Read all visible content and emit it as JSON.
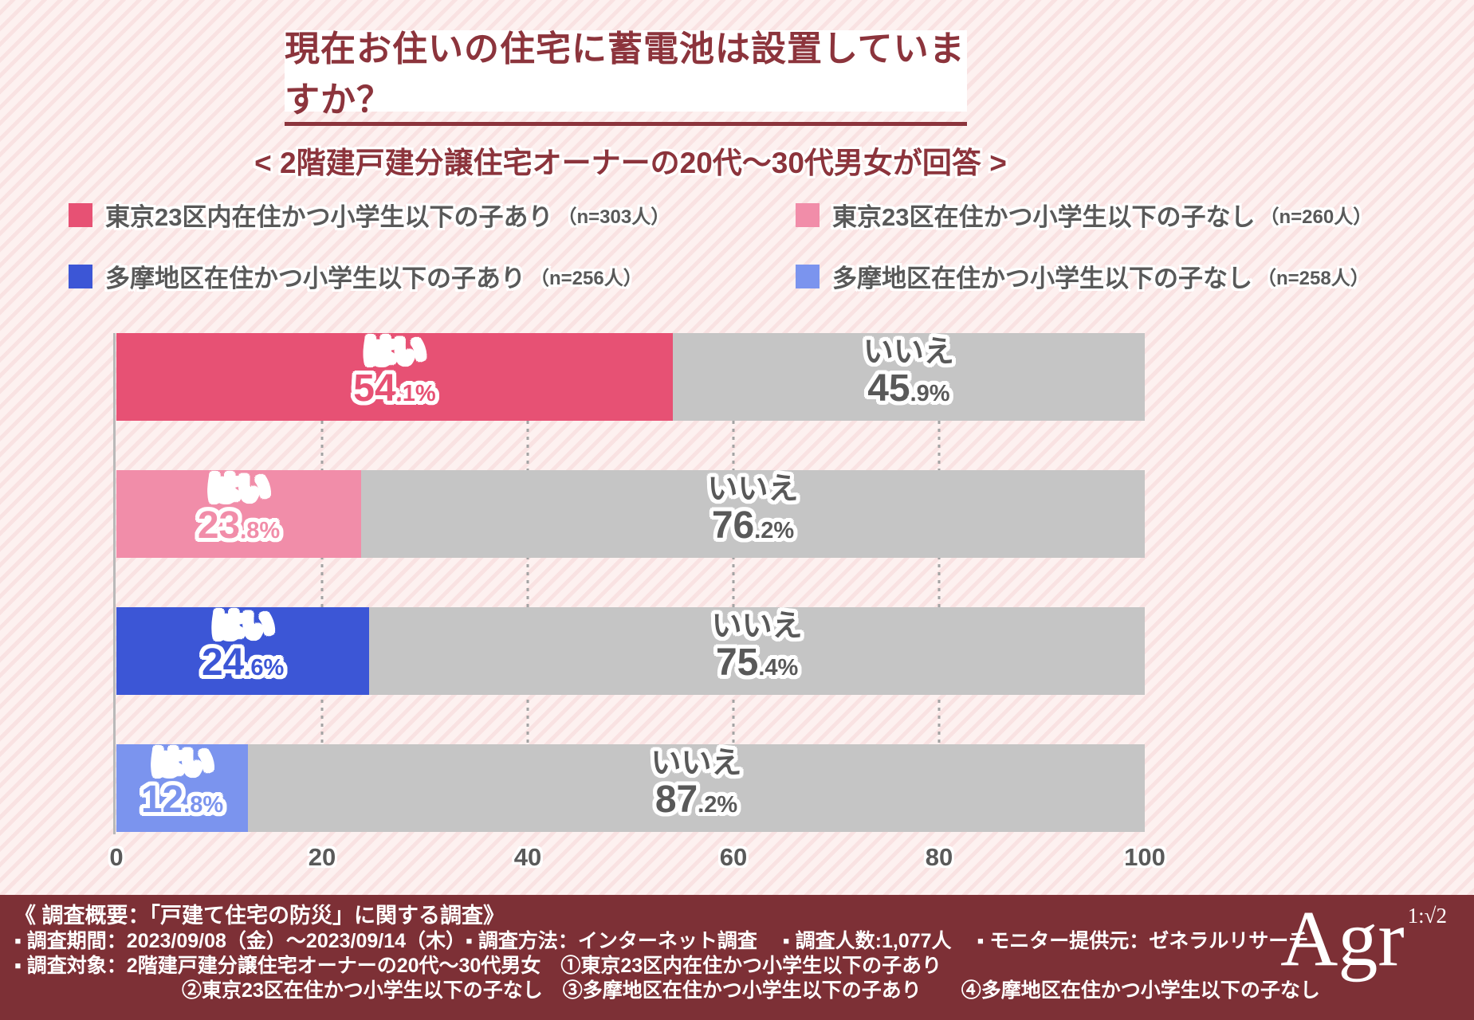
{
  "title": "現在お住いの住宅に蓄電池は設置していますか？",
  "subtitle": "< 2階建戸建分譲住宅オーナーの20代～30代男女が回答 >",
  "legend": [
    {
      "label": "東京23区内在住かつ小学生以下の子あり",
      "n": "（n=303人）",
      "color": "#e75174"
    },
    {
      "label": "東京23区在住かつ小学生以下の子なし",
      "n": "（n=260人）",
      "color": "#f18da9"
    },
    {
      "label": "多摩地区在住かつ小学生以下の子あり",
      "n": "（n=256人）",
      "color": "#3c56d6"
    },
    {
      "label": "多摩地区在住かつ小学生以下の子なし",
      "n": "（n=258人）",
      "color": "#7b94ee"
    }
  ],
  "chart_data": {
    "type": "bar",
    "orientation": "horizontal",
    "stacked": true,
    "categories": [
      "東京23区内在住かつ小学生以下の子あり（n=303人）",
      "東京23区在住かつ小学生以下の子なし（n=260人）",
      "多摩地区在住かつ小学生以下の子あり（n=256人）",
      "多摩地区在住かつ小学生以下の子なし（n=258人）"
    ],
    "series": [
      {
        "name": "はい",
        "values": [
          54.1,
          23.8,
          24.6,
          12.8
        ],
        "colors": [
          "#e75174",
          "#f18da9",
          "#3c56d6",
          "#7b94ee"
        ]
      },
      {
        "name": "いいえ",
        "values": [
          45.9,
          76.2,
          75.4,
          87.2
        ],
        "color": "#c5c5c5"
      }
    ],
    "xlim": [
      0,
      100
    ],
    "xticks": [
      0,
      20,
      40,
      60,
      80,
      100
    ],
    "gridlines": [
      20,
      40,
      60,
      80
    ],
    "no_text_color": "#595959",
    "grid": true,
    "legend_position": "top"
  },
  "footer": {
    "line1": "《 調査概要：「戸建て住宅の防災」に関する調査》",
    "line2": "▪ 調査期間：2023/09/08（金）～2023/09/14（木）▪ 調査方法：インターネット調査　 ▪ 調査人数:1,077人 　▪ モニター提供元：ゼネラルリサーチ",
    "line3": "▪ 調査対象：2階建戸建分譲住宅オーナーの20代～30代男女　①東京23区内在住かつ小学生以下の子あり",
    "line4": "②東京23区在住かつ小学生以下の子なし　③多摩地区在住かつ小学生以下の子あり　　④多摩地区在住かつ小学生以下の子なし"
  },
  "logo": {
    "text": "Agr",
    "ratio": "1:√2"
  }
}
